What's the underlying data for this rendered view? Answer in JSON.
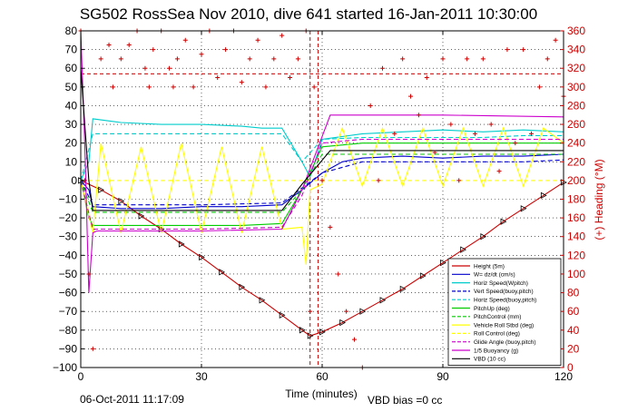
{
  "chart_data": {
    "type": "line",
    "title": "SG502 RossSea Nov 2010, dive 641 started 16-Jan-2011 10:30:00",
    "xlabel": "Time (minutes)",
    "ylabel_right": "(+) Heading (°M)",
    "footer_left": "06-Oct-2011 11:17:09",
    "footer_right": "VBD bias =0 cc",
    "xlim": [
      0,
      120
    ],
    "ylim_left": [
      -100,
      80
    ],
    "ylim_right": [
      0,
      360
    ],
    "x_ticks": [
      0,
      30,
      60,
      90,
      120
    ],
    "x_tick_labels": [
      "0",
      "30",
      "60",
      "90",
      "120"
    ],
    "y_left_ticks": [
      -100,
      -90,
      -80,
      -70,
      -60,
      -50,
      -40,
      -30,
      -20,
      -10,
      0,
      10,
      20,
      30,
      40,
      50,
      60,
      70,
      80
    ],
    "y_left_tick_labels": [
      "−100",
      "−90",
      "−80",
      "−70",
      "−60",
      "−50",
      "−40",
      "−30",
      "−20",
      "−10",
      "0",
      "10",
      "20",
      "30",
      "40",
      "50",
      "60",
      "70",
      "80"
    ],
    "y_right_ticks": [
      0,
      20,
      40,
      60,
      80,
      100,
      120,
      140,
      160,
      180,
      200,
      220,
      240,
      260,
      280,
      300,
      320,
      340,
      360
    ],
    "y_right_tick_labels": [
      "0",
      "20",
      "40",
      "60",
      "80",
      "100",
      "120",
      "140",
      "160",
      "180",
      "200",
      "220",
      "240",
      "260",
      "280",
      "300",
      "320",
      "340",
      "360"
    ],
    "grid": true,
    "legend_position": "bottom-right",
    "reference_lines": [
      {
        "axis": "y_left",
        "value": 57,
        "color": "#cc0000",
        "style": "dashed"
      },
      {
        "axis": "x",
        "value": 57,
        "color": "#cc0000",
        "style": "dashed"
      },
      {
        "axis": "x",
        "value": 59,
        "color": "#cc0000",
        "style": "dashed"
      }
    ],
    "series": [
      {
        "name": "Height (5m)",
        "color": "#cc0000",
        "style": "solid",
        "marker": "triangle",
        "x": [
          0,
          5,
          10,
          15,
          20,
          25,
          30,
          35,
          40,
          45,
          50,
          55,
          57,
          60,
          65,
          70,
          75,
          80,
          85,
          90,
          95,
          100,
          105,
          110,
          115,
          120
        ],
        "y": [
          0,
          -5,
          -11,
          -19,
          -26,
          -34,
          -41,
          -49,
          -57,
          -64,
          -72,
          -80,
          -83,
          -81,
          -76,
          -70,
          -64,
          -58,
          -51,
          -44,
          -37,
          -30,
          -22,
          -15,
          -8,
          -1
        ]
      },
      {
        "name": "W= dz/dt (cm/s)",
        "color": "#0000cc",
        "style": "solid",
        "x": [
          0,
          2,
          3,
          10,
          20,
          30,
          40,
          50,
          55,
          60,
          65,
          70,
          80,
          90,
          100,
          110,
          120
        ],
        "y": [
          0,
          -5,
          -14,
          -15,
          -15,
          -14,
          -14,
          -13,
          -5,
          4,
          10,
          12,
          13,
          12,
          13,
          13,
          14
        ]
      },
      {
        "name": "Horiz Speed(Wpitch)",
        "color": "#00cccc",
        "style": "solid",
        "x": [
          0,
          2,
          3,
          10,
          20,
          30,
          40,
          45,
          50,
          55,
          57,
          60,
          70,
          80,
          90,
          100,
          110,
          120
        ],
        "y": [
          0,
          10,
          33,
          31,
          30,
          30,
          29,
          28,
          28,
          10,
          2,
          22,
          25,
          26,
          27,
          26,
          27,
          26
        ]
      },
      {
        "name": "Vert Speed(buoy,pitch)",
        "color": "#0000cc",
        "style": "dashed",
        "x": [
          0,
          3,
          10,
          30,
          50,
          55,
          60,
          70,
          80,
          90,
          100,
          110,
          120
        ],
        "y": [
          0,
          -13,
          -13,
          -13,
          -12,
          -4,
          4,
          10,
          10,
          10,
          10,
          10,
          11
        ]
      },
      {
        "name": "Horiz Speed(buoy,pitch)",
        "color": "#00cccc",
        "style": "dashed",
        "x": [
          0,
          3,
          10,
          30,
          50,
          55,
          60,
          70,
          80,
          90,
          100,
          110,
          120
        ],
        "y": [
          0,
          25,
          25,
          25,
          25,
          10,
          22,
          23,
          23,
          23,
          23,
          24,
          24
        ]
      },
      {
        "name": "PitchUp (deg)",
        "color": "#00cc00",
        "style": "solid",
        "x": [
          0,
          2,
          3,
          10,
          20,
          30,
          40,
          50,
          55,
          60,
          70,
          80,
          90,
          100,
          110,
          120
        ],
        "y": [
          0,
          -20,
          -24,
          -24,
          -24,
          -24,
          -24,
          -23,
          -5,
          18,
          20,
          20,
          20,
          20,
          20,
          20
        ]
      },
      {
        "name": "PitchControl (mm)",
        "color": "#00cc00",
        "style": "dashed",
        "x": [
          0,
          3,
          10,
          50,
          55,
          60,
          70,
          120
        ],
        "y": [
          0,
          -17,
          -17,
          -17,
          -5,
          14,
          14,
          14
        ]
      },
      {
        "name": "Vehicle Roll Stbd (deg)",
        "color": "#ffff00",
        "style": "solid",
        "x": [
          0,
          3,
          5,
          10,
          15,
          20,
          25,
          30,
          35,
          40,
          45,
          50,
          55,
          56,
          57,
          60,
          65,
          70,
          75,
          80,
          85,
          90,
          95,
          100,
          105,
          110,
          115,
          120
        ],
        "y": [
          0,
          -28,
          20,
          -28,
          18,
          -28,
          20,
          -28,
          18,
          -28,
          18,
          -26,
          -25,
          -45,
          -5,
          -2,
          28,
          -3,
          28,
          -3,
          28,
          -3,
          28,
          -3,
          28,
          -3,
          28,
          20
        ]
      },
      {
        "name": "Roll Control (deg)",
        "color": "#ffff00",
        "style": "dashed",
        "x": [
          0,
          10,
          30,
          50,
          55,
          60,
          90,
          120
        ],
        "y": [
          0,
          0,
          0,
          0,
          0,
          0,
          0,
          0
        ]
      },
      {
        "name": "Glide Angle (buoy,pitch)",
        "color": "#cc00cc",
        "style": "dashed",
        "x": [
          0,
          3,
          10,
          30,
          50,
          55,
          60,
          70,
          90,
          120
        ],
        "y": [
          0,
          -26,
          -26,
          -26,
          -25,
          -8,
          20,
          22,
          22,
          22
        ]
      },
      {
        "name": "1/5 Buoyancy (g)",
        "color": "#cc00cc",
        "style": "solid",
        "x": [
          0,
          1,
          2,
          3,
          4,
          10,
          30,
          50,
          55,
          62,
          70,
          90,
          120
        ],
        "y": [
          80,
          20,
          -60,
          -28,
          -27,
          -27,
          -27,
          -26,
          -5,
          35,
          35,
          35,
          34
        ]
      },
      {
        "name": "VBD (10 cc)",
        "color": "#000000",
        "style": "solid",
        "x": [
          0,
          1,
          2,
          3,
          10,
          30,
          50,
          55,
          62,
          90,
          120
        ],
        "y": [
          60,
          30,
          0,
          -16,
          -16,
          -16,
          -16,
          -2,
          16,
          16,
          16
        ]
      },
      {
        "name": "Heading",
        "axis": "right",
        "color": "#cc0000",
        "style": "marker-plus",
        "x": [
          0,
          1,
          2,
          3,
          5,
          7,
          8,
          10,
          12,
          14,
          16,
          17,
          18,
          20,
          22,
          23,
          24,
          26,
          28,
          30,
          32,
          34,
          36,
          38,
          40,
          42,
          44,
          46,
          48,
          50,
          52,
          54,
          56,
          57,
          58,
          60,
          62,
          64,
          66,
          68,
          70,
          72,
          74,
          75,
          78,
          80,
          82,
          84,
          86,
          88,
          90,
          92,
          94,
          96,
          98,
          100,
          102,
          104,
          106,
          108,
          110,
          112,
          114,
          116,
          118,
          120
        ],
        "y": [
          360,
          200,
          100,
          20,
          330,
          345,
          300,
          330,
          345,
          360,
          320,
          300,
          340,
          360,
          320,
          300,
          330,
          350,
          300,
          335,
          360,
          310,
          340,
          360,
          305,
          330,
          350,
          300,
          330,
          355,
          310,
          330,
          360,
          60,
          300,
          200,
          150,
          100,
          60,
          30,
          0,
          280,
          200,
          320,
          250,
          330,
          290,
          270,
          310,
          230,
          330,
          260,
          200,
          330,
          250,
          330,
          260,
          210,
          340,
          240,
          340,
          250,
          300,
          330,
          350,
          290
        ]
      }
    ]
  }
}
